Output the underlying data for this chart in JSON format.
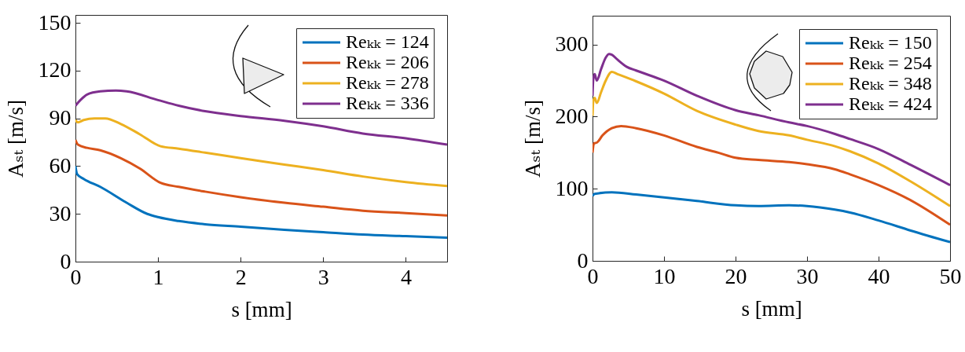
{
  "chart_data": [
    {
      "type": "line",
      "xlabel": "s [mm]",
      "ylabel": "Aₛₜ [m/s]",
      "xlim": [
        0,
        4.5
      ],
      "ylim": [
        0,
        155
      ],
      "xticks": [
        0,
        1,
        2,
        3,
        4
      ],
      "yticks": [
        0,
        30,
        60,
        90,
        120,
        150
      ],
      "legend": "top right",
      "series": [
        {
          "name": "Reₖₖ = 124",
          "color": "#0072bd",
          "x": [
            0,
            0.02,
            0.1,
            0.3,
            0.62,
            0.87,
            1.0,
            1.25,
            1.57,
            2.0,
            2.53,
            3.0,
            3.48,
            4.0,
            4.5
          ],
          "values": [
            60,
            55,
            52,
            47,
            37,
            30,
            28,
            25.5,
            23.5,
            22,
            20,
            18.5,
            17,
            16,
            15
          ]
        },
        {
          "name": "Reₖₖ = 206",
          "color": "#d95319",
          "x": [
            0,
            0.03,
            0.14,
            0.3,
            0.55,
            0.78,
            1.03,
            1.25,
            1.57,
            2.0,
            2.53,
            3.0,
            3.48,
            4.0,
            4.5
          ],
          "values": [
            76.5,
            73.5,
            71.5,
            70,
            65,
            58.5,
            49.5,
            47,
            44,
            40.5,
            37,
            34.5,
            32,
            30.5,
            29
          ]
        },
        {
          "name": "Reₖₖ = 278",
          "color": "#edb120",
          "x": [
            0,
            0.03,
            0.1,
            0.23,
            0.36,
            0.55,
            0.78,
            1.03,
            1.25,
            1.57,
            2.0,
            2.53,
            3.0,
            3.48,
            4.0,
            4.5
          ],
          "values": [
            89,
            87.5,
            89,
            90,
            90,
            86.5,
            80,
            72.5,
            71,
            68.5,
            65,
            61,
            57.5,
            53.5,
            50,
            47.5
          ]
        },
        {
          "name": "Reₖₖ = 336",
          "color": "#7e2f8e",
          "x": [
            0,
            0.06,
            0.14,
            0.3,
            0.49,
            0.62,
            1.0,
            1.25,
            1.57,
            2.0,
            2.53,
            3.0,
            3.48,
            4.0,
            4.5
          ],
          "values": [
            98,
            101.5,
            105,
            107,
            107.5,
            107,
            101.5,
            98,
            94.5,
            91.5,
            88.5,
            85,
            80.5,
            77.5,
            73.5
          ]
        }
      ]
    },
    {
      "type": "line",
      "xlabel": "s [mm]",
      "ylabel": "Aₛₜ [m/s]",
      "xlim": [
        0,
        50
      ],
      "ylim": [
        0,
        340
      ],
      "xticks": [
        0,
        10,
        20,
        30,
        40,
        50
      ],
      "yticks": [
        0,
        100,
        200,
        300
      ],
      "legend": "top right",
      "series": [
        {
          "name": "Reₖₖ = 150",
          "color": "#0072bd",
          "x": [
            0,
            0.3,
            2.7,
            6.1,
            10,
            14.6,
            20,
            23.2,
            27.5,
            30,
            33.9,
            36,
            40,
            44.5,
            50
          ],
          "values": [
            90,
            93,
            95,
            92,
            88,
            83,
            77,
            76,
            77,
            76,
            71,
            67,
            56,
            42,
            26
          ]
        },
        {
          "name": "Reₖₖ = 254",
          "color": "#d95319",
          "x": [
            0,
            0.2,
            0.6,
            1.4,
            2.7,
            4,
            6.1,
            10,
            14.6,
            17.6,
            20,
            23.2,
            27.5,
            30,
            33.9,
            36,
            40,
            44.5,
            50
          ],
          "values": [
            150,
            163,
            164,
            174,
            184,
            187,
            184,
            174,
            158,
            150,
            143,
            140,
            137,
            134,
            127,
            120,
            105,
            84,
            50
          ]
        },
        {
          "name": "Reₖₖ = 348",
          "color": "#edb120",
          "x": [
            0,
            0.1,
            0.3,
            0.6,
            1.2,
            1.8,
            2.7,
            3.5,
            6.1,
            10,
            14.6,
            20,
            23.2,
            27.5,
            30,
            33.9,
            36,
            40,
            44.5,
            50
          ],
          "values": [
            201,
            221,
            226,
            219,
            234,
            249,
            262,
            259,
            249,
            232,
            208,
            189,
            180,
            174,
            168,
            159,
            152,
            135,
            110,
            76
          ]
        },
        {
          "name": "Reₖₖ = 424",
          "color": "#7e2f8e",
          "x": [
            0,
            0.1,
            0.3,
            0.6,
            1.2,
            1.8,
            2.3,
            2.7,
            3.5,
            4.8,
            6.1,
            10,
            14.6,
            20,
            23.2,
            27.5,
            30,
            33.9,
            36,
            40,
            44.5,
            50
          ],
          "values": [
            229,
            251,
            259,
            250,
            266,
            281,
            287,
            286,
            279,
            269,
            264,
            250,
            229,
            209,
            202,
            192,
            187,
            176,
            169,
            155,
            133,
            105
          ]
        }
      ]
    }
  ]
}
